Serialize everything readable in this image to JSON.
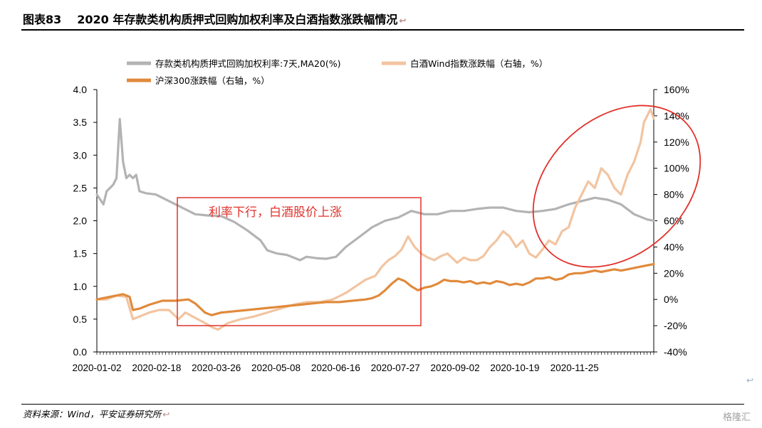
{
  "header": {
    "figure_num": "图表83",
    "title": "2020 年存款类机构质押式回购加权利率及白酒指数涨跌幅情况",
    "return_mark": "↩"
  },
  "footer": {
    "source": "资料来源：Wind，平安证券研究所",
    "watermark": "格隆汇"
  },
  "annotation": {
    "box_text": "利率下行，白酒股价上涨"
  },
  "colors": {
    "rate": "#b3b3b3",
    "baijiu": "#f2c4a0",
    "hs300": "#e08a3c",
    "annotation_red": "#e0322b"
  },
  "chart_data": {
    "type": "line",
    "x_tick_labels": [
      "2020-01-02",
      "2020-02-18",
      "2020-03-26",
      "2020-05-08",
      "2020-06-16",
      "2020-07-27",
      "2020-09-02",
      "2020-10-19",
      "2020-11-25"
    ],
    "y_left": {
      "ticks": [
        "0.0",
        "0.5",
        "1.0",
        "1.5",
        "2.0",
        "2.5",
        "3.0",
        "3.5",
        "4.0"
      ],
      "lim": [
        0,
        4
      ]
    },
    "y_right": {
      "ticks": [
        "-40%",
        "-20%",
        "0%",
        "20%",
        "40%",
        "60%",
        "80%",
        "100%",
        "120%",
        "140%",
        "160%"
      ],
      "lim": [
        -40,
        160
      ]
    },
    "series": [
      {
        "name": "存款类机构质押式回购加权利率:7天,MA20(%)",
        "axis": "left",
        "points": [
          [
            0,
            2.4
          ],
          [
            2,
            2.25
          ],
          [
            3,
            2.45
          ],
          [
            5,
            2.55
          ],
          [
            6,
            2.65
          ],
          [
            7,
            3.55
          ],
          [
            8,
            2.9
          ],
          [
            9,
            2.65
          ],
          [
            10,
            2.7
          ],
          [
            11,
            2.65
          ],
          [
            12,
            2.7
          ],
          [
            13,
            2.45
          ],
          [
            15,
            2.42
          ],
          [
            18,
            2.4
          ],
          [
            22,
            2.3
          ],
          [
            26,
            2.2
          ],
          [
            30,
            2.1
          ],
          [
            34,
            2.08
          ],
          [
            38,
            2.07
          ],
          [
            42,
            1.98
          ],
          [
            46,
            1.85
          ],
          [
            50,
            1.7
          ],
          [
            52,
            1.55
          ],
          [
            55,
            1.5
          ],
          [
            58,
            1.48
          ],
          [
            62,
            1.4
          ],
          [
            64,
            1.45
          ],
          [
            67,
            1.43
          ],
          [
            70,
            1.42
          ],
          [
            73,
            1.45
          ],
          [
            76,
            1.6
          ],
          [
            80,
            1.75
          ],
          [
            84,
            1.9
          ],
          [
            88,
            2.0
          ],
          [
            92,
            2.05
          ],
          [
            96,
            2.15
          ],
          [
            100,
            2.1
          ],
          [
            104,
            2.1
          ],
          [
            108,
            2.15
          ],
          [
            112,
            2.15
          ],
          [
            116,
            2.18
          ],
          [
            120,
            2.2
          ],
          [
            124,
            2.2
          ],
          [
            128,
            2.15
          ],
          [
            132,
            2.13
          ],
          [
            136,
            2.15
          ],
          [
            140,
            2.18
          ],
          [
            144,
            2.25
          ],
          [
            148,
            2.3
          ],
          [
            152,
            2.35
          ],
          [
            156,
            2.32
          ],
          [
            160,
            2.25
          ],
          [
            164,
            2.1
          ],
          [
            168,
            2.02
          ],
          [
            170,
            2.0
          ]
        ]
      },
      {
        "name": "白酒Wind指数涨跌幅（右轴，%）",
        "axis": "right",
        "points": [
          [
            0,
            0
          ],
          [
            3,
            0
          ],
          [
            6,
            3
          ],
          [
            9,
            2
          ],
          [
            11,
            -15
          ],
          [
            13,
            -13
          ],
          [
            16,
            -10
          ],
          [
            19,
            -8
          ],
          [
            22,
            -8
          ],
          [
            25,
            -15
          ],
          [
            27,
            -10
          ],
          [
            30,
            -14
          ],
          [
            33,
            -18
          ],
          [
            35,
            -21
          ],
          [
            37,
            -23
          ],
          [
            40,
            -18
          ],
          [
            44,
            -15
          ],
          [
            48,
            -13
          ],
          [
            52,
            -10
          ],
          [
            56,
            -7
          ],
          [
            60,
            -4
          ],
          [
            64,
            -2
          ],
          [
            68,
            -2
          ],
          [
            72,
            0
          ],
          [
            76,
            5
          ],
          [
            79,
            10
          ],
          [
            82,
            15
          ],
          [
            85,
            18
          ],
          [
            87,
            25
          ],
          [
            89,
            30
          ],
          [
            91,
            33
          ],
          [
            93,
            38
          ],
          [
            95,
            48
          ],
          [
            97,
            40
          ],
          [
            99,
            35
          ],
          [
            101,
            32
          ],
          [
            103,
            30
          ],
          [
            105,
            33
          ],
          [
            107,
            35
          ],
          [
            110,
            28
          ],
          [
            112,
            32
          ],
          [
            114,
            30
          ],
          [
            116,
            30
          ],
          [
            118,
            33
          ],
          [
            120,
            40
          ],
          [
            122,
            45
          ],
          [
            124,
            52
          ],
          [
            126,
            48
          ],
          [
            128,
            40
          ],
          [
            130,
            45
          ],
          [
            132,
            35
          ],
          [
            134,
            32
          ],
          [
            136,
            38
          ],
          [
            138,
            45
          ],
          [
            140,
            42
          ],
          [
            142,
            52
          ],
          [
            144,
            55
          ],
          [
            146,
            70
          ],
          [
            148,
            80
          ],
          [
            150,
            90
          ],
          [
            152,
            85
          ],
          [
            154,
            100
          ],
          [
            156,
            95
          ],
          [
            158,
            85
          ],
          [
            160,
            80
          ],
          [
            162,
            95
          ],
          [
            164,
            105
          ],
          [
            166,
            120
          ],
          [
            167,
            135
          ],
          [
            168,
            140
          ],
          [
            169,
            145
          ],
          [
            170,
            138
          ]
        ]
      },
      {
        "name": "沪深300涨跌幅（右轴，%）",
        "axis": "right",
        "points": [
          [
            0,
            0
          ],
          [
            4,
            2
          ],
          [
            8,
            4
          ],
          [
            10,
            2
          ],
          [
            11,
            -8
          ],
          [
            13,
            -7
          ],
          [
            16,
            -4
          ],
          [
            20,
            -1
          ],
          [
            24,
            -1
          ],
          [
            28,
            0
          ],
          [
            30,
            -3
          ],
          [
            33,
            -10
          ],
          [
            35,
            -12
          ],
          [
            38,
            -10
          ],
          [
            42,
            -9
          ],
          [
            46,
            -8
          ],
          [
            50,
            -7
          ],
          [
            54,
            -6
          ],
          [
            58,
            -5
          ],
          [
            62,
            -4
          ],
          [
            66,
            -3
          ],
          [
            70,
            -2
          ],
          [
            74,
            -2
          ],
          [
            78,
            -1
          ],
          [
            82,
            0
          ],
          [
            84,
            1
          ],
          [
            86,
            3
          ],
          [
            88,
            7
          ],
          [
            90,
            12
          ],
          [
            92,
            16
          ],
          [
            94,
            14
          ],
          [
            96,
            10
          ],
          [
            98,
            7
          ],
          [
            100,
            9
          ],
          [
            102,
            10
          ],
          [
            104,
            12
          ],
          [
            106,
            15
          ],
          [
            108,
            14
          ],
          [
            110,
            14
          ],
          [
            112,
            13
          ],
          [
            114,
            14
          ],
          [
            116,
            12
          ],
          [
            118,
            13
          ],
          [
            120,
            12
          ],
          [
            122,
            14
          ],
          [
            124,
            13
          ],
          [
            126,
            11
          ],
          [
            128,
            12
          ],
          [
            130,
            11
          ],
          [
            132,
            13
          ],
          [
            134,
            16
          ],
          [
            136,
            16
          ],
          [
            138,
            17
          ],
          [
            140,
            15
          ],
          [
            142,
            16
          ],
          [
            144,
            19
          ],
          [
            146,
            20
          ],
          [
            148,
            20
          ],
          [
            150,
            21
          ],
          [
            152,
            22
          ],
          [
            154,
            21
          ],
          [
            156,
            22
          ],
          [
            158,
            23
          ],
          [
            160,
            22
          ],
          [
            162,
            23
          ],
          [
            164,
            24
          ],
          [
            166,
            25
          ],
          [
            168,
            26
          ],
          [
            170,
            27
          ]
        ]
      }
    ],
    "legend_position": "top",
    "grid": false
  }
}
